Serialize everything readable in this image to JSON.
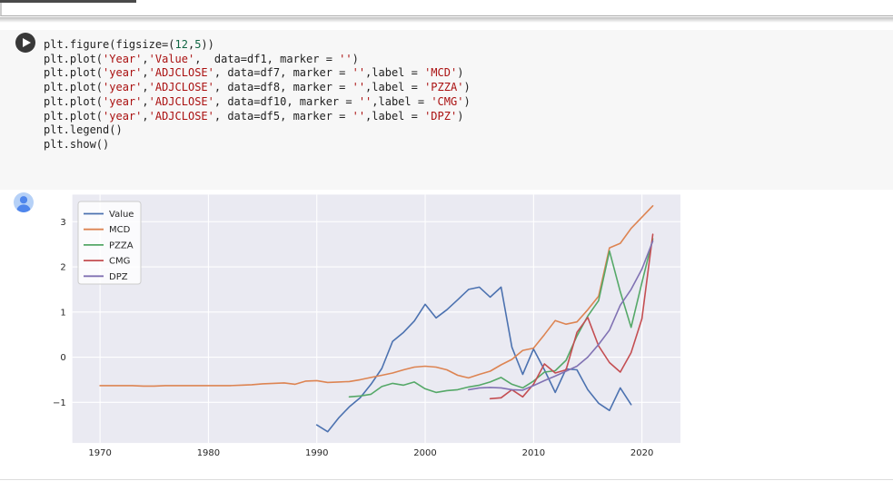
{
  "accent_colors": {
    "cell_background": "#f7f7f7",
    "plot_background": "#eaeaf2",
    "grid_color": "#ffffff",
    "code_string_color": "#aa1111",
    "code_number_color": "#116644",
    "avatar_bg": "#b6d1f7",
    "avatar_glyph": "#4f86ec",
    "run_button_bg": "#383838"
  },
  "cell": {
    "run_button": "play-circle",
    "code_lines": [
      "plt.figure(figsize=(12,5))",
      "plt.plot('Year','Value',  data=df1, marker = '')",
      "plt.plot('year','ADJCLOSE', data=df7, marker = '',label = 'MCD')",
      "plt.plot('year','ADJCLOSE', data=df8, marker = '',label = 'PZZA')",
      "plt.plot('year','ADJCLOSE', data=df10, marker = '',label = 'CMG')",
      "plt.plot('year','ADJCLOSE', data=df5, marker = '',label = 'DPZ')",
      "plt.legend()",
      "plt.show()"
    ]
  },
  "output": {
    "avatar_icon": "person-icon"
  },
  "chart_data": {
    "type": "line",
    "title": "",
    "xlabel": "",
    "ylabel": "",
    "grid": true,
    "legend_position": "upper left",
    "plot_bg": "#eaeaf2",
    "xlim": [
      1967.45,
      2023.55
    ],
    "ylim": [
      -1.9,
      3.6
    ],
    "x_ticks": [
      1970,
      1980,
      1990,
      2000,
      2010,
      2020
    ],
    "y_ticks": [
      -1,
      0,
      1,
      2,
      3
    ],
    "series": [
      {
        "name": "Value",
        "color": "#4c72b0",
        "points": [
          [
            1990,
            -1.5
          ],
          [
            1991,
            -1.65
          ],
          [
            1992,
            -1.35
          ],
          [
            1993,
            -1.1
          ],
          [
            1994,
            -0.9
          ],
          [
            1995,
            -0.6
          ],
          [
            1996,
            -0.25
          ],
          [
            1997,
            0.35
          ],
          [
            1998,
            0.55
          ],
          [
            1999,
            0.8
          ],
          [
            2000,
            1.17
          ],
          [
            2001,
            0.87
          ],
          [
            2002,
            1.05
          ],
          [
            2003,
            1.27
          ],
          [
            2004,
            1.5
          ],
          [
            2005,
            1.55
          ],
          [
            2006,
            1.33
          ],
          [
            2007,
            1.55
          ],
          [
            2008,
            0.22
          ],
          [
            2009,
            -0.38
          ],
          [
            2010,
            0.18
          ],
          [
            2011,
            -0.28
          ],
          [
            2012,
            -0.78
          ],
          [
            2013,
            -0.26
          ],
          [
            2014,
            -0.28
          ],
          [
            2015,
            -0.72
          ],
          [
            2016,
            -1.02
          ],
          [
            2017,
            -1.18
          ],
          [
            2018,
            -0.68
          ],
          [
            2019,
            -1.05
          ]
        ]
      },
      {
        "name": "MCD",
        "color": "#dd8452",
        "points": [
          [
            1970,
            -0.63
          ],
          [
            1971,
            -0.63
          ],
          [
            1972,
            -0.63
          ],
          [
            1973,
            -0.63
          ],
          [
            1974,
            -0.64
          ],
          [
            1975,
            -0.64
          ],
          [
            1976,
            -0.63
          ],
          [
            1977,
            -0.63
          ],
          [
            1978,
            -0.63
          ],
          [
            1979,
            -0.63
          ],
          [
            1980,
            -0.63
          ],
          [
            1981,
            -0.63
          ],
          [
            1982,
            -0.63
          ],
          [
            1983,
            -0.62
          ],
          [
            1984,
            -0.61
          ],
          [
            1985,
            -0.59
          ],
          [
            1986,
            -0.58
          ],
          [
            1987,
            -0.57
          ],
          [
            1988,
            -0.6
          ],
          [
            1989,
            -0.53
          ],
          [
            1990,
            -0.52
          ],
          [
            1991,
            -0.56
          ],
          [
            1992,
            -0.55
          ],
          [
            1993,
            -0.54
          ],
          [
            1994,
            -0.5
          ],
          [
            1995,
            -0.45
          ],
          [
            1996,
            -0.4
          ],
          [
            1997,
            -0.35
          ],
          [
            1998,
            -0.28
          ],
          [
            1999,
            -0.22
          ],
          [
            2000,
            -0.2
          ],
          [
            2001,
            -0.22
          ],
          [
            2002,
            -0.28
          ],
          [
            2003,
            -0.4
          ],
          [
            2004,
            -0.46
          ],
          [
            2005,
            -0.38
          ],
          [
            2006,
            -0.31
          ],
          [
            2007,
            -0.17
          ],
          [
            2008,
            -0.05
          ],
          [
            2009,
            0.15
          ],
          [
            2010,
            0.2
          ],
          [
            2011,
            0.5
          ],
          [
            2012,
            0.81
          ],
          [
            2013,
            0.73
          ],
          [
            2014,
            0.78
          ],
          [
            2015,
            1.05
          ],
          [
            2016,
            1.35
          ],
          [
            2017,
            2.42
          ],
          [
            2018,
            2.52
          ],
          [
            2019,
            2.85
          ],
          [
            2020,
            3.1
          ],
          [
            2021,
            3.35
          ]
        ]
      },
      {
        "name": "PZZA",
        "color": "#55a868",
        "points": [
          [
            1993,
            -0.88
          ],
          [
            1994,
            -0.86
          ],
          [
            1995,
            -0.82
          ],
          [
            1996,
            -0.65
          ],
          [
            1997,
            -0.58
          ],
          [
            1998,
            -0.62
          ],
          [
            1999,
            -0.55
          ],
          [
            2000,
            -0.7
          ],
          [
            2001,
            -0.78
          ],
          [
            2002,
            -0.74
          ],
          [
            2003,
            -0.72
          ],
          [
            2004,
            -0.66
          ],
          [
            2005,
            -0.62
          ],
          [
            2006,
            -0.55
          ],
          [
            2007,
            -0.45
          ],
          [
            2008,
            -0.6
          ],
          [
            2009,
            -0.68
          ],
          [
            2010,
            -0.53
          ],
          [
            2011,
            -0.33
          ],
          [
            2012,
            -0.3
          ],
          [
            2013,
            -0.07
          ],
          [
            2014,
            0.47
          ],
          [
            2015,
            0.91
          ],
          [
            2016,
            1.25
          ],
          [
            2017,
            2.35
          ],
          [
            2018,
            1.45
          ],
          [
            2019,
            0.66
          ],
          [
            2020,
            1.65
          ],
          [
            2021,
            2.62
          ]
        ]
      },
      {
        "name": "CMG",
        "color": "#c44e52",
        "points": [
          [
            2006,
            -0.92
          ],
          [
            2007,
            -0.9
          ],
          [
            2008,
            -0.72
          ],
          [
            2009,
            -0.88
          ],
          [
            2010,
            -0.6
          ],
          [
            2011,
            -0.15
          ],
          [
            2012,
            -0.35
          ],
          [
            2013,
            -0.28
          ],
          [
            2014,
            0.55
          ],
          [
            2015,
            0.88
          ],
          [
            2016,
            0.25
          ],
          [
            2017,
            -0.12
          ],
          [
            2018,
            -0.33
          ],
          [
            2019,
            0.1
          ],
          [
            2020,
            0.85
          ],
          [
            2021,
            2.72
          ]
        ]
      },
      {
        "name": "DPZ",
        "color": "#8172b3",
        "points": [
          [
            2004,
            -0.72
          ],
          [
            2005,
            -0.68
          ],
          [
            2006,
            -0.67
          ],
          [
            2007,
            -0.68
          ],
          [
            2008,
            -0.72
          ],
          [
            2009,
            -0.73
          ],
          [
            2010,
            -0.63
          ],
          [
            2011,
            -0.52
          ],
          [
            2012,
            -0.42
          ],
          [
            2013,
            -0.31
          ],
          [
            2014,
            -0.2
          ],
          [
            2015,
            0.0
          ],
          [
            2016,
            0.28
          ],
          [
            2017,
            0.6
          ],
          [
            2018,
            1.15
          ],
          [
            2019,
            1.5
          ],
          [
            2020,
            1.95
          ],
          [
            2021,
            2.57
          ]
        ]
      }
    ]
  }
}
